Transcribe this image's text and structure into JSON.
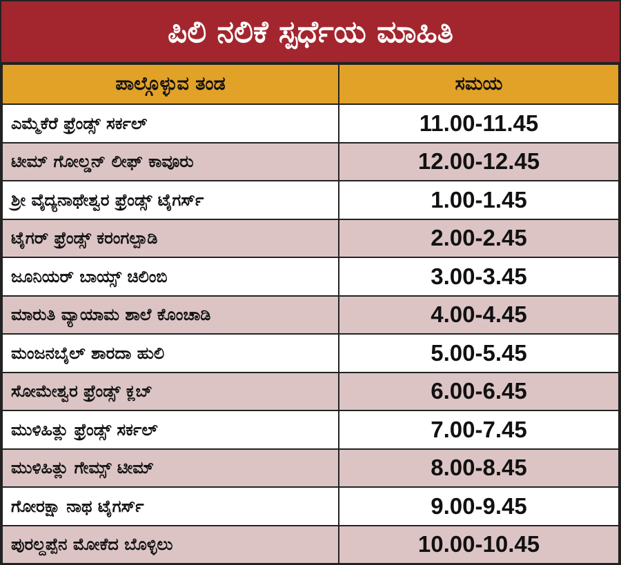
{
  "header": {
    "title": "ಪಿಲಿ ನಲಿಕೆ ಸ್ಪರ್ಧೆಯ ಮಾಹಿತಿ"
  },
  "table": {
    "columns": [
      "ಪಾಲ್ಗೊಳ್ಳುವ ತಂಡ",
      "ಸಮಯ"
    ],
    "rows": [
      [
        "ಎಮ್ಮೆಕೆರೆ ಫ್ರೆಂಡ್ಸ್ ಸರ್ಕಲ್",
        "11.00-11.45"
      ],
      [
        "ಟೀಮ್ ಗೋಲ್ಡನ್ ಲೀಫ್ ಕಾವೂರು",
        "12.00-12.45"
      ],
      [
        "ಶ್ರೀ ವೈದ್ಯನಾಥೇಶ್ವರ ಫ್ರೆಂಡ್ಸ್ ಟೈಗರ್ಸ್",
        "1.00-1.45"
      ],
      [
        "ಟೈಗರ್ ಫ್ರೆಂಡ್ಸ್ ಕರಂಗಲ್ಪಾಡಿ",
        "2.00-2.45"
      ],
      [
        "ಜೂನಿಯರ್ ಬಾಯ್ಸ್ ಚಿಲಿಂಬಿ",
        "3.00-3.45"
      ],
      [
        "ಮಾರುತಿ ವ್ಯಾಯಾಮ ಶಾಲೆ ಕೊಂಚಾಡಿ",
        "4.00-4.45"
      ],
      [
        "ಮಂಜನಬೈಲ್ ಶಾರದಾ ಹುಲಿ",
        "5.00-5.45"
      ],
      [
        "ಸೋಮೇಶ್ವರ ಫ್ರೆಂಡ್ಸ್ ಕ್ಲಬ್",
        "6.00-6.45"
      ],
      [
        "ಮುಳಿಹಿತ್ಲು ಫ್ರೆಂಡ್ಸ್ ಸರ್ಕಲ್",
        "7.00-7.45"
      ],
      [
        "ಮುಳಿಹಿತ್ಲು ಗೇಮ್ಸ್ ಟೀಮ್",
        "8.00-8.45"
      ],
      [
        "ಗೋರಕ್ಷಾ ನಾಥ ಟೈಗರ್ಸ್",
        "9.00-9.45"
      ],
      [
        "ಪುರಲ್ದಪ್ಪೆನ ಮೋಕೆದ ಬೊಳ್ಳಿಲು",
        "10.00-10.45"
      ]
    ]
  }
}
